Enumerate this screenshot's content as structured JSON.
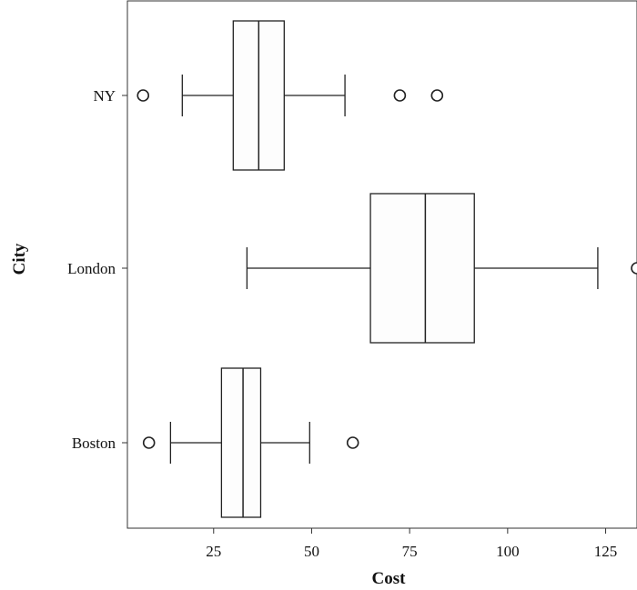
{
  "chart_data": {
    "type": "boxplot",
    "orientation": "horizontal",
    "xlabel": "Cost",
    "ylabel": "City",
    "xlim": [
      3,
      133
    ],
    "xticks": [
      25,
      50,
      75,
      100,
      125
    ],
    "grid": false,
    "categories": [
      "NY",
      "London",
      "Boston"
    ],
    "series": [
      {
        "name": "NY",
        "whisker_low": 17,
        "q1": 30,
        "median": 36.5,
        "q3": 43,
        "whisker_high": 58.5,
        "outliers": [
          7,
          72.5,
          82
        ]
      },
      {
        "name": "London",
        "whisker_low": 33.5,
        "q1": 65,
        "median": 79,
        "q3": 91.5,
        "whisker_high": 123,
        "outliers": [
          133
        ]
      },
      {
        "name": "Boston",
        "whisker_low": 14,
        "q1": 27,
        "median": 32.5,
        "q3": 37,
        "whisker_high": 49.5,
        "outliers": [
          8.5,
          60.5
        ]
      }
    ]
  }
}
